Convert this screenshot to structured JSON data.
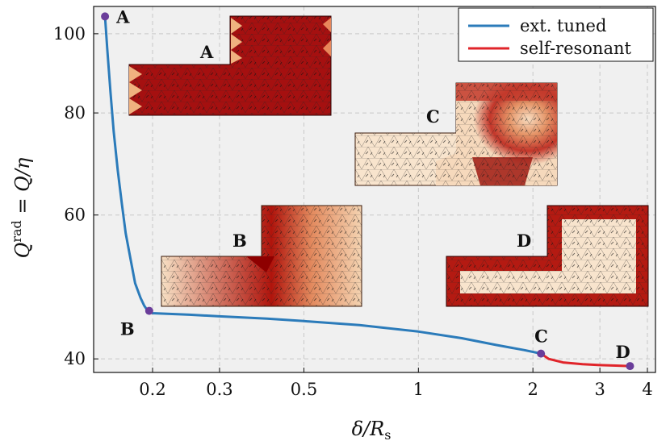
{
  "colors": {
    "ext_tuned": "#2b7bba",
    "self_resonant": "#e0242a",
    "marker": "#6a3d9a",
    "plot_bg": "#f0f0f0",
    "grid": "#c8c8c8",
    "current_high": "#8e0000",
    "current_low": "#fbe9d6"
  },
  "chart_data": {
    "type": "line",
    "xlabel": "δ/R_s",
    "ylabel": "Q^rad = Q/η",
    "xscale": "log",
    "yscale": "log",
    "xlim": [
      0.14,
      4.2
    ],
    "ylim": [
      38.5,
      108
    ],
    "xticks": [
      0.2,
      0.3,
      0.5,
      1,
      2,
      3,
      4
    ],
    "xtick_labels": [
      "0.2",
      "0.3",
      "0.5",
      "1",
      "2",
      "3",
      "4"
    ],
    "yticks": [
      40,
      60,
      80,
      100
    ],
    "ytick_labels": [
      "40",
      "60",
      "80",
      "100"
    ],
    "grid": true,
    "legend_position": "top-right",
    "series": [
      {
        "name": "ext. tuned",
        "color": "#2b7bba",
        "x": [
          0.15,
          0.152,
          0.155,
          0.158,
          0.162,
          0.166,
          0.17,
          0.175,
          0.18,
          0.186,
          0.19,
          0.193,
          0.196,
          0.2,
          0.25,
          0.3,
          0.4,
          0.5,
          0.7,
          1.0,
          1.3,
          1.6,
          1.9,
          2.1
        ],
        "y": [
          105,
          96,
          85,
          76,
          68,
          62,
          57,
          53,
          49.5,
          47.5,
          46.5,
          46,
          45.8,
          45.5,
          45.3,
          45.1,
          44.8,
          44.5,
          44,
          43.2,
          42.4,
          41.6,
          41,
          40.6
        ]
      },
      {
        "name": "self-resonant",
        "color": "#e0242a",
        "x": [
          2.1,
          2.2,
          2.4,
          2.7,
          3.0,
          3.3,
          3.6
        ],
        "y": [
          40.6,
          40.0,
          39.6,
          39.4,
          39.3,
          39.25,
          39.2
        ]
      }
    ],
    "points": [
      {
        "label": "A",
        "x": 0.15,
        "y": 105
      },
      {
        "label": "B",
        "x": 0.196,
        "y": 45.8
      },
      {
        "label": "C",
        "x": 2.1,
        "y": 40.6
      },
      {
        "label": "D",
        "x": 3.6,
        "y": 39.2
      }
    ],
    "inset_labels": [
      "A",
      "B",
      "C",
      "D"
    ]
  }
}
